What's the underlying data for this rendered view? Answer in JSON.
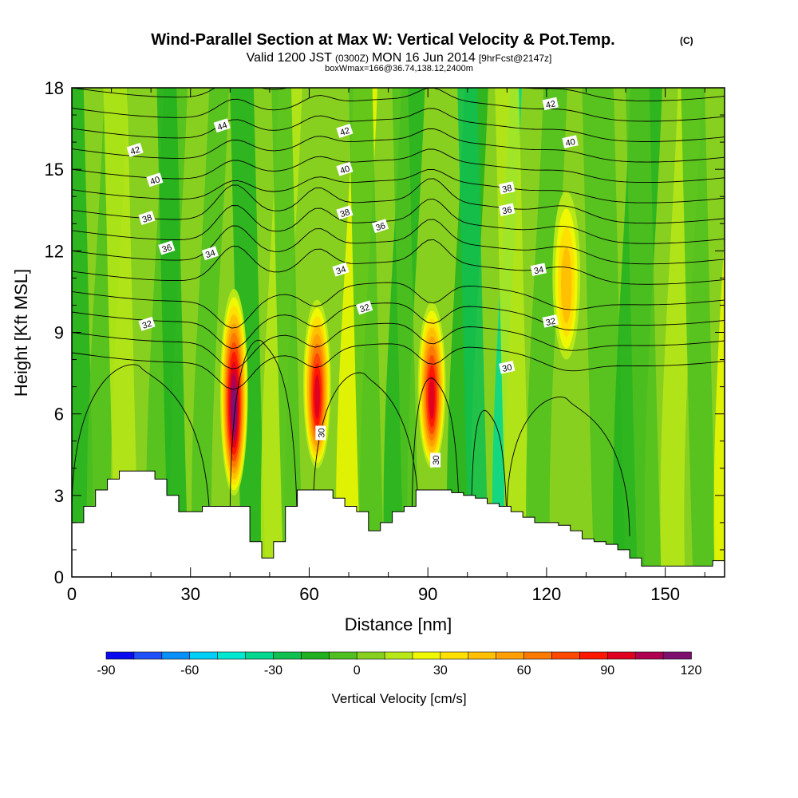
{
  "chart_data": {
    "type": "heatmap",
    "title": "Wind-Parallel Section at Max W: Vertical Velocity & Pot.Temp.",
    "title_mark": "(C)",
    "subtitle_parts": [
      "Valid 1200 JST",
      "(0300Z)",
      "MON 16 Jun 2014",
      "[9hrFcst@2147z]"
    ],
    "subtitle2": "boxWmax=166@36.74,138.12,2400m",
    "xlabel": "Distance [nm]",
    "ylabel": "Height [Kft MSL]",
    "xlim": [
      0,
      165
    ],
    "ylim": [
      0,
      18
    ],
    "x_ticks": [
      0,
      30,
      60,
      90,
      120,
      150
    ],
    "y_ticks": [
      0,
      3,
      6,
      9,
      12,
      15,
      18
    ],
    "colorbar": {
      "label": "Vertical Velocity [cm/s]",
      "ticks": [
        -90,
        -60,
        -30,
        0,
        30,
        60,
        90,
        120
      ],
      "levels": [
        -90,
        -80,
        -70,
        -60,
        -50,
        -40,
        -30,
        -20,
        -10,
        0,
        10,
        20,
        30,
        40,
        50,
        60,
        70,
        80,
        90,
        100,
        110,
        120
      ],
      "colors": [
        "#0a0af0",
        "#2050f8",
        "#0890f8",
        "#00d0f8",
        "#00e8d0",
        "#00d890",
        "#10c050",
        "#20b020",
        "#50c020",
        "#88d020",
        "#b8e818",
        "#f0f800",
        "#ffe000",
        "#ffc000",
        "#ffa000",
        "#ff7a00",
        "#ff4800",
        "#ff1800",
        "#e00020",
        "#b00050",
        "#801070"
      ]
    },
    "updrafts": [
      {
        "x": 41,
        "z_bottom": 3,
        "z_top": 10.6,
        "wmax": 110
      },
      {
        "x": 62,
        "z_bottom": 4,
        "z_top": 10.2,
        "wmax": 90
      },
      {
        "x": 91,
        "z_bottom": 4,
        "z_top": 10.1,
        "wmax": 95
      },
      {
        "x": 125,
        "z_bottom": 8,
        "z_top": 14.2,
        "wmax": 45
      }
    ],
    "terrain": {
      "x": [
        0,
        3,
        3,
        6,
        6,
        9,
        9,
        12,
        12,
        15,
        15,
        18,
        18,
        21,
        21,
        24,
        24,
        27,
        27,
        30,
        30,
        33,
        33,
        36,
        36,
        39,
        39,
        42,
        42,
        45,
        45,
        48,
        48,
        51,
        51,
        54,
        54,
        57,
        57,
        60,
        60,
        63,
        63,
        66,
        66,
        69,
        69,
        72,
        72,
        75,
        75,
        78,
        78,
        81,
        81,
        84,
        84,
        87,
        87,
        90,
        90,
        96,
        96,
        99,
        99,
        102,
        102,
        105,
        105,
        108,
        108,
        111,
        111,
        114,
        114,
        117,
        117,
        120,
        120,
        123,
        123,
        126,
        126,
        129,
        129,
        132,
        132,
        135,
        135,
        138,
        138,
        141,
        141,
        144,
        144,
        147,
        147,
        150,
        150,
        153,
        153,
        156,
        156,
        159,
        159,
        162,
        162,
        165
      ],
      "z": [
        2.0,
        2.0,
        2.6,
        2.6,
        3.2,
        3.2,
        3.6,
        3.6,
        3.9,
        3.9,
        3.9,
        3.9,
        3.9,
        3.9,
        3.6,
        3.6,
        3.0,
        3.0,
        2.4,
        2.4,
        2.4,
        2.4,
        2.6,
        2.6,
        2.6,
        2.6,
        2.6,
        2.6,
        2.6,
        2.6,
        1.3,
        1.3,
        0.7,
        0.7,
        1.3,
        1.3,
        2.6,
        2.6,
        3.2,
        3.2,
        3.2,
        3.2,
        3.2,
        3.2,
        2.9,
        2.9,
        2.6,
        2.6,
        2.4,
        2.4,
        1.7,
        1.7,
        2.0,
        2.0,
        2.4,
        2.4,
        2.6,
        2.6,
        3.2,
        3.2,
        3.2,
        3.2,
        3.1,
        3.1,
        3.0,
        3.0,
        2.9,
        2.9,
        2.7,
        2.7,
        2.6,
        2.6,
        2.4,
        2.4,
        2.2,
        2.2,
        2.0,
        2.0,
        2.0,
        2.0,
        1.9,
        1.9,
        1.7,
        1.7,
        1.4,
        1.4,
        1.3,
        1.3,
        1.2,
        1.2,
        1.0,
        1.0,
        0.7,
        0.7,
        0.4,
        0.4,
        0.4,
        0.4,
        0.4,
        0.4,
        0.4,
        0.4,
        0.4,
        0.4,
        0.4,
        0.4,
        0.6,
        0.6
      ]
    },
    "theta_contours": {
      "levels": [
        30,
        31,
        32,
        33,
        34,
        35,
        36,
        37,
        38,
        39,
        40,
        41,
        42,
        43,
        44
      ],
      "labels": [
        {
          "text": "42",
          "x": 16,
          "z": 15.7
        },
        {
          "text": "40",
          "x": 21,
          "z": 14.6
        },
        {
          "text": "38",
          "x": 19,
          "z": 13.2
        },
        {
          "text": "36",
          "x": 24,
          "z": 12.1
        },
        {
          "text": "34",
          "x": 35,
          "z": 11.9
        },
        {
          "text": "32",
          "x": 19,
          "z": 9.3
        },
        {
          "text": "44",
          "x": 38,
          "z": 16.6
        },
        {
          "text": "42",
          "x": 69,
          "z": 16.4
        },
        {
          "text": "40",
          "x": 69,
          "z": 15.0
        },
        {
          "text": "38",
          "x": 69,
          "z": 13.4
        },
        {
          "text": "36",
          "x": 78,
          "z": 12.9
        },
        {
          "text": "34",
          "x": 68,
          "z": 11.3
        },
        {
          "text": "32",
          "x": 74,
          "z": 9.9
        },
        {
          "text": "30",
          "x": 63,
          "z": 5.3
        },
        {
          "text": "30",
          "x": 92,
          "z": 4.3
        },
        {
          "text": "38",
          "x": 110,
          "z": 14.3
        },
        {
          "text": "36",
          "x": 110,
          "z": 13.5
        },
        {
          "text": "30",
          "x": 110,
          "z": 7.7
        },
        {
          "text": "42",
          "x": 121,
          "z": 17.4
        },
        {
          "text": "40",
          "x": 126,
          "z": 16.0
        },
        {
          "text": "34",
          "x": 118,
          "z": 11.3
        },
        {
          "text": "32",
          "x": 121,
          "z": 9.4
        }
      ]
    }
  }
}
